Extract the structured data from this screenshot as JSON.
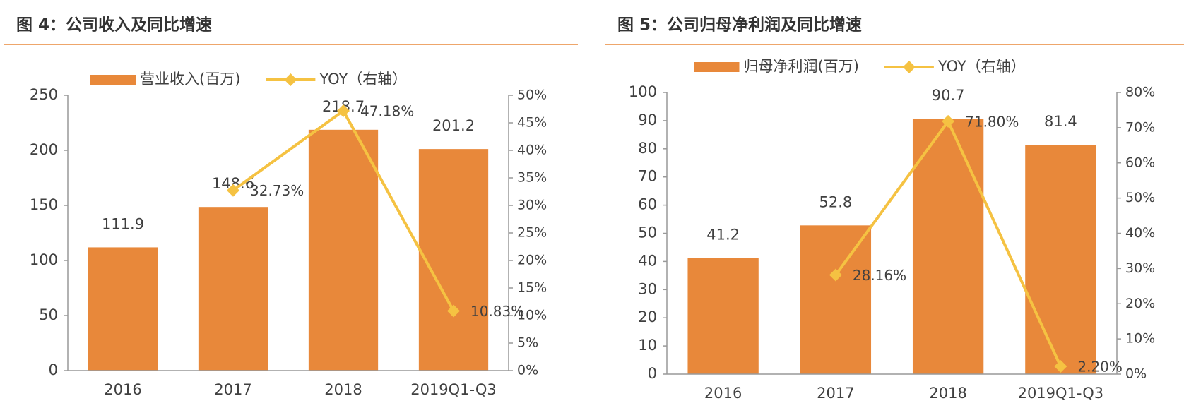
{
  "chart_data": [
    {
      "type": "bar",
      "title": "图 4：公司收入及同比增速",
      "categories": [
        "2016",
        "2017",
        "2018",
        "2019Q1-Q3"
      ],
      "series": [
        {
          "name": "营业收入(百万)",
          "color": "#E8883A",
          "values": [
            111.9,
            148.6,
            218.7,
            201.2
          ]
        },
        {
          "name": "YOY（右轴）",
          "color": "#F5C242",
          "axis": "y2",
          "values": [
            null,
            32.73,
            47.18,
            10.83
          ],
          "value_labels": [
            null,
            "32.73%",
            "47.18%",
            "10.83%"
          ]
        }
      ],
      "ylim": [
        0,
        250
      ],
      "yticks": [
        0,
        50,
        100,
        150,
        200,
        250
      ],
      "y2lim": [
        0,
        50
      ],
      "y2ticks": [
        {
          "value": 0,
          "label": "0%"
        },
        {
          "value": 5,
          "label": "5%"
        },
        {
          "value": 10,
          "label": "10%"
        },
        {
          "value": 15,
          "label": "15%"
        },
        {
          "value": 20,
          "label": "20%"
        },
        {
          "value": 25,
          "label": "25%"
        },
        {
          "value": 30,
          "label": "30%"
        },
        {
          "value": 35,
          "label": "35%"
        },
        {
          "value": 40,
          "label": "40%"
        },
        {
          "value": 45,
          "label": "45%"
        },
        {
          "value": 50,
          "label": "50%"
        }
      ],
      "grid": false,
      "legend": "top"
    },
    {
      "type": "bar",
      "title": "图 5：公司归母净利润及同比增速",
      "categories": [
        "2016",
        "2017",
        "2018",
        "2019Q1-Q3"
      ],
      "series": [
        {
          "name": "归母净利润(百万)",
          "color": "#E8883A",
          "values": [
            41.2,
            52.8,
            90.7,
            81.4
          ]
        },
        {
          "name": "YOY（右轴）",
          "color": "#F5C242",
          "axis": "y2",
          "values": [
            null,
            28.16,
            71.8,
            2.2
          ],
          "value_labels": [
            null,
            "28.16%",
            "71.80%",
            "2.20%"
          ]
        }
      ],
      "ylim": [
        0,
        100
      ],
      "yticks": [
        0,
        10,
        20,
        30,
        40,
        50,
        60,
        70,
        80,
        90,
        100
      ],
      "y2lim": [
        0,
        80
      ],
      "y2ticks": [
        {
          "value": 0,
          "label": "0%"
        },
        {
          "value": 10,
          "label": "10%"
        },
        {
          "value": 20,
          "label": "20%"
        },
        {
          "value": 30,
          "label": "30%"
        },
        {
          "value": 40,
          "label": "40%"
        },
        {
          "value": 50,
          "label": "50%"
        },
        {
          "value": 60,
          "label": "60%"
        },
        {
          "value": 70,
          "label": "70%"
        },
        {
          "value": 80,
          "label": "80%"
        }
      ],
      "grid": false,
      "legend": "top"
    }
  ]
}
